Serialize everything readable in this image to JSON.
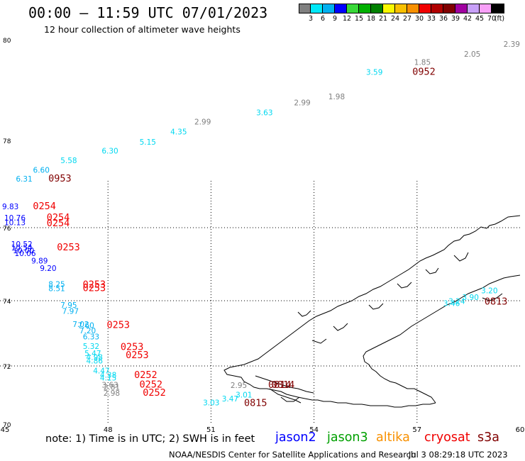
{
  "header": {
    "title": "00:00 – 11:59 UTC 07/01/2023",
    "subtitle": "12 hour collection of altimeter wave heights"
  },
  "colorbar": {
    "colors": [
      "#808080",
      "#00e8f8",
      "#00b0f0",
      "#0000ff",
      "#38d838",
      "#00b000",
      "#008000",
      "#f8f800",
      "#f8c000",
      "#f89000",
      "#f00000",
      "#b00000",
      "#800000",
      "#a000a0",
      "#c8a0f8",
      "#f8a0f8",
      "#000000"
    ],
    "labels": [
      "3",
      "6",
      "9",
      "12",
      "15",
      "18",
      "21",
      "24",
      "27",
      "30",
      "33",
      "36",
      "39",
      "42",
      "45",
      "70",
      "(ft)"
    ]
  },
  "map": {
    "lon_ticks": [
      "45",
      "48",
      "51",
      "54",
      "57",
      "60"
    ],
    "lat_ticks": [
      "70",
      "72",
      "74",
      "76",
      "78",
      "80"
    ],
    "observations": [
      {
        "lat": 79.5,
        "lon": 57.4,
        "text": "1.85",
        "kind": "swh",
        "color": "#808080"
      },
      {
        "lat": 79.66,
        "lon": 58.85,
        "text": "2.05",
        "kind": "swh",
        "color": "#808080"
      },
      {
        "lat": 79.86,
        "lon": 60.0,
        "text": "2.39",
        "kind": "swh",
        "color": "#808080"
      },
      {
        "lat": 79.3,
        "lon": 56.0,
        "text": "3.59",
        "kind": "swh",
        "color": "#00d8f0"
      },
      {
        "lat": 79.3,
        "lon": 57.2,
        "text": "0952",
        "kind": "time",
        "color": "#800000"
      },
      {
        "lat": 78.82,
        "lon": 54.9,
        "text": "1.98",
        "kind": "swh",
        "color": "#808080"
      },
      {
        "lat": 78.7,
        "lon": 53.9,
        "text": "2.99",
        "kind": "swh",
        "color": "#808080"
      },
      {
        "lat": 78.5,
        "lon": 52.8,
        "text": "3.63",
        "kind": "swh",
        "color": "#00d8f0"
      },
      {
        "lat": 78.32,
        "lon": 51.0,
        "text": "2.99",
        "kind": "swh",
        "color": "#808080"
      },
      {
        "lat": 78.12,
        "lon": 50.3,
        "text": "4.35",
        "kind": "swh",
        "color": "#00d8f0"
      },
      {
        "lat": 77.9,
        "lon": 49.4,
        "text": "5.15",
        "kind": "swh",
        "color": "#00d8f0"
      },
      {
        "lat": 77.7,
        "lon": 48.3,
        "text": "6.30",
        "kind": "swh",
        "color": "#00d8f0"
      },
      {
        "lat": 77.48,
        "lon": 47.1,
        "text": "5.58",
        "kind": "swh",
        "color": "#00d8f0"
      },
      {
        "lat": 77.26,
        "lon": 46.3,
        "text": "6.60",
        "kind": "swh",
        "color": "#00b0f0"
      },
      {
        "lat": 77.06,
        "lon": 45.8,
        "text": "6.31",
        "kind": "swh",
        "color": "#00b0f0"
      },
      {
        "lat": 77.06,
        "lon": 46.6,
        "text": "0953",
        "kind": "time",
        "color": "#800000"
      },
      {
        "lat": 76.42,
        "lon": 45.4,
        "text": "9.83",
        "kind": "swh",
        "color": "#0000ff"
      },
      {
        "lat": 76.42,
        "lon": 46.15,
        "text": "0254",
        "kind": "time",
        "color": "#f00000"
      },
      {
        "lat": 76.16,
        "lon": 45.6,
        "text": "10.76",
        "kind": "swh",
        "color": "#0000ff"
      },
      {
        "lat": 76.16,
        "lon": 46.55,
        "text": "0254",
        "kind": "time",
        "color": "#f00000"
      },
      {
        "lat": 76.06,
        "lon": 45.6,
        "text": "10.13",
        "kind": "swh",
        "color": "#0000ff"
      },
      {
        "lat": 76.03,
        "lon": 46.55,
        "text": "0254",
        "kind": "time",
        "color": "#f00000"
      },
      {
        "lat": 75.48,
        "lon": 45.8,
        "text": "10.52",
        "kind": "swh",
        "color": "#0000ff"
      },
      {
        "lat": 75.38,
        "lon": 45.8,
        "text": "10.54",
        "kind": "swh",
        "color": "#0000ff"
      },
      {
        "lat": 75.3,
        "lon": 45.85,
        "text": "10.00",
        "kind": "swh",
        "color": "#0000ff"
      },
      {
        "lat": 75.22,
        "lon": 45.9,
        "text": "10.06",
        "kind": "swh",
        "color": "#0000ff"
      },
      {
        "lat": 75.38,
        "lon": 46.85,
        "text": "0253",
        "kind": "time",
        "color": "#f00000"
      },
      {
        "lat": 75.02,
        "lon": 46.25,
        "text": "9.89",
        "kind": "swh",
        "color": "#0000ff"
      },
      {
        "lat": 74.82,
        "lon": 46.5,
        "text": "9.20",
        "kind": "swh",
        "color": "#0000ff"
      },
      {
        "lat": 74.38,
        "lon": 46.75,
        "text": "8.25",
        "kind": "swh",
        "color": "#00b0f0"
      },
      {
        "lat": 74.36,
        "lon": 47.6,
        "text": "0253",
        "kind": "time",
        "color": "#f00000"
      },
      {
        "lat": 74.26,
        "lon": 46.75,
        "text": "8.51",
        "kind": "swh",
        "color": "#00b0f0"
      },
      {
        "lat": 74.26,
        "lon": 47.6,
        "text": "0253",
        "kind": "time",
        "color": "#f00000"
      },
      {
        "lat": 73.78,
        "lon": 47.1,
        "text": "7.95",
        "kind": "swh",
        "color": "#00b0f0"
      },
      {
        "lat": 73.6,
        "lon": 47.15,
        "text": "7.97",
        "kind": "swh",
        "color": "#00b0f0"
      },
      {
        "lat": 73.2,
        "lon": 47.45,
        "text": "7.02",
        "kind": "swh",
        "color": "#00b0f0"
      },
      {
        "lat": 73.16,
        "lon": 48.3,
        "text": "0253",
        "kind": "time",
        "color": "#f00000"
      },
      {
        "lat": 73.16,
        "lon": 47.6,
        "text": "7.60",
        "kind": "swh",
        "color": "#00b0f0"
      },
      {
        "lat": 73.0,
        "lon": 47.65,
        "text": "7.20",
        "kind": "swh",
        "color": "#00b0f0"
      },
      {
        "lat": 72.82,
        "lon": 47.75,
        "text": "6.33",
        "kind": "swh",
        "color": "#00b0f0"
      },
      {
        "lat": 72.52,
        "lon": 47.75,
        "text": "5.32",
        "kind": "swh",
        "color": "#00d8f0"
      },
      {
        "lat": 72.49,
        "lon": 48.7,
        "text": "0253",
        "kind": "time",
        "color": "#f00000"
      },
      {
        "lat": 72.3,
        "lon": 47.8,
        "text": "5.47",
        "kind": "swh",
        "color": "#00d8f0"
      },
      {
        "lat": 72.24,
        "lon": 48.85,
        "text": "0253",
        "kind": "time",
        "color": "#f00000"
      },
      {
        "lat": 72.18,
        "lon": 47.85,
        "text": "4.98",
        "kind": "swh",
        "color": "#00d8f0"
      },
      {
        "lat": 72.08,
        "lon": 47.85,
        "text": "4.86",
        "kind": "swh",
        "color": "#00d8f0"
      },
      {
        "lat": 71.74,
        "lon": 48.05,
        "text": "4.47",
        "kind": "swh",
        "color": "#00d8f0"
      },
      {
        "lat": 71.6,
        "lon": 48.25,
        "text": "4.38",
        "kind": "swh",
        "color": "#00d8f0"
      },
      {
        "lat": 71.58,
        "lon": 49.1,
        "text": "0252",
        "kind": "time",
        "color": "#f00000"
      },
      {
        "lat": 71.5,
        "lon": 48.25,
        "text": "4.15",
        "kind": "swh",
        "color": "#00d8f0"
      },
      {
        "lat": 71.26,
        "lon": 48.3,
        "text": "3.63",
        "kind": "swh",
        "color": "#808080"
      },
      {
        "lat": 71.26,
        "lon": 49.25,
        "text": "0252",
        "kind": "time",
        "color": "#f00000"
      },
      {
        "lat": 71.18,
        "lon": 48.35,
        "text": "2.81",
        "kind": "swh",
        "color": "#808080"
      },
      {
        "lat": 70.98,
        "lon": 48.35,
        "text": "2.98",
        "kind": "swh",
        "color": "#808080"
      },
      {
        "lat": 70.98,
        "lon": 49.35,
        "text": "0252",
        "kind": "time",
        "color": "#f00000"
      },
      {
        "lat": 71.24,
        "lon": 52.05,
        "text": "2.95",
        "kind": "swh",
        "color": "#808080"
      },
      {
        "lat": 71.24,
        "lon": 53.0,
        "text": "0814",
        "kind": "time",
        "color": "#800000"
      },
      {
        "lat": 71.24,
        "lon": 53.1,
        "text": "0814",
        "kind": "time",
        "color": "#800000"
      },
      {
        "lat": 70.92,
        "lon": 52.2,
        "text": "3.01",
        "kind": "swh",
        "color": "#00d8f0"
      },
      {
        "lat": 70.78,
        "lon": 51.8,
        "text": "3.47",
        "kind": "swh",
        "color": "#00d8f0"
      },
      {
        "lat": 70.65,
        "lon": 51.25,
        "text": "3.03",
        "kind": "swh",
        "color": "#00d8f0"
      },
      {
        "lat": 70.62,
        "lon": 52.3,
        "text": "0815",
        "kind": "time",
        "color": "#800000"
      },
      {
        "lat": 74.2,
        "lon": 59.35,
        "text": "3.20",
        "kind": "swh",
        "color": "#00d8f0"
      },
      {
        "lat": 74.02,
        "lon": 58.8,
        "text": "3.90",
        "kind": "swh",
        "color": "#00d8f0"
      },
      {
        "lat": 73.9,
        "lon": 58.4,
        "text": "3.24",
        "kind": "swh",
        "color": "#00d8f0"
      },
      {
        "lat": 73.84,
        "lon": 58.25,
        "text": "3.46",
        "kind": "swh",
        "color": "#00d8f0"
      },
      {
        "lat": 73.88,
        "lon": 59.3,
        "text": "0813",
        "kind": "time",
        "color": "#800000"
      }
    ]
  },
  "note": {
    "text": "note:  1) Time is in UTC; 2) SWH is in feet"
  },
  "satellites": [
    {
      "name": "jason2",
      "color": "#0000ff"
    },
    {
      "name": "jason3",
      "color": "#00a000"
    },
    {
      "name": "altika",
      "color": "#f89000"
    },
    {
      "name": "cryosat",
      "color": "#f00000"
    },
    {
      "name": "s3a",
      "color": "#800000"
    }
  ],
  "footer": {
    "credit": "NOAA/NESDIS Center for Satellite Applications and Research",
    "generated": "Jul  3 08:29:18 UTC 2023"
  }
}
